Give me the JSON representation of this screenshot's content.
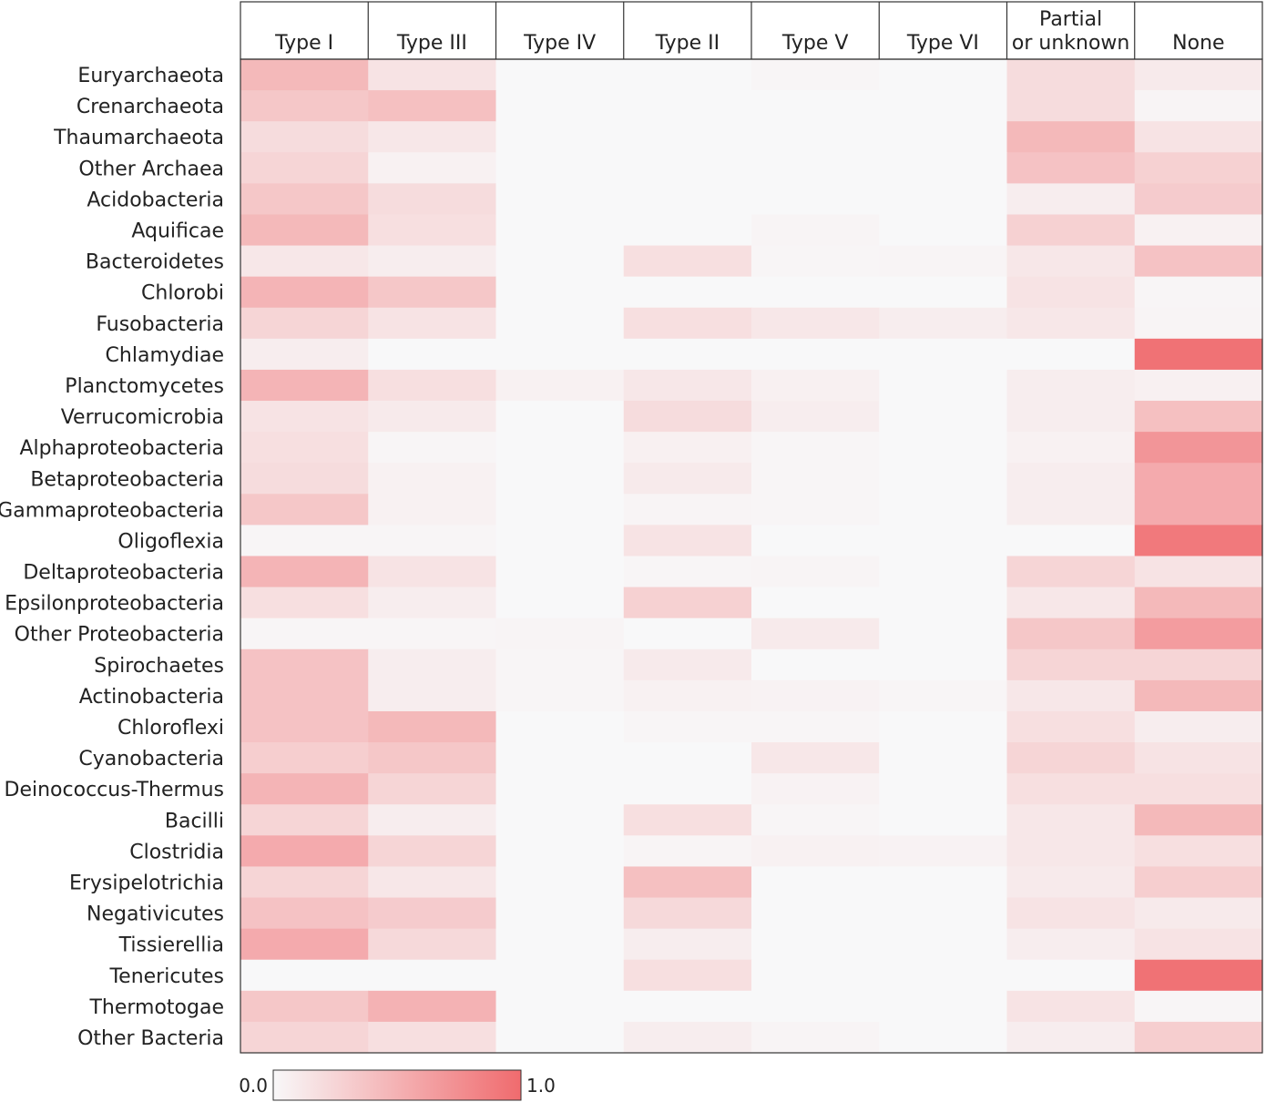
{
  "chart_data": {
    "type": "heatmap",
    "columns": [
      "Type I",
      "Type III",
      "Type IV",
      "Type II",
      "Type V",
      "Type VI",
      "Partial or unknown",
      "None"
    ],
    "rows": [
      "Euryarchaeota",
      "Crenarchaeota",
      "Thaumarchaeota",
      "Other Archaea",
      "Acidobacteria",
      "Aquificae",
      "Bacteroidetes",
      "Chlorobi",
      "Fusobacteria",
      "Chlamydiae",
      "Planctomycetes",
      "Verrucomicrobia",
      "Alphaproteobacteria",
      "Betaproteobacteria",
      "Gammaproteobacteria",
      "Oligoflexia",
      "Deltaproteobacteria",
      "Epsilonproteobacteria",
      "Other Proteobacteria",
      "Spirochaetes",
      "Actinobacteria",
      "Chloroflexi",
      "Cyanobacteria",
      "Deinococcus-Thermus",
      "Bacilli",
      "Clostridia",
      "Erysipelotrichia",
      "Negativicutes",
      "Tissierellia",
      "Tenericutes",
      "Thermotogae",
      "Other Bacteria"
    ],
    "values": [
      [
        0.45,
        0.15,
        0.0,
        0.0,
        0.02,
        0.0,
        0.2,
        0.1
      ],
      [
        0.35,
        0.4,
        0.0,
        0.0,
        0.0,
        0.0,
        0.2,
        0.03
      ],
      [
        0.2,
        0.12,
        0.0,
        0.0,
        0.0,
        0.0,
        0.45,
        0.15
      ],
      [
        0.25,
        0.05,
        0.0,
        0.0,
        0.0,
        0.0,
        0.38,
        0.28
      ],
      [
        0.35,
        0.2,
        0.0,
        0.0,
        0.0,
        0.0,
        0.08,
        0.32
      ],
      [
        0.45,
        0.18,
        0.0,
        0.0,
        0.03,
        0.0,
        0.28,
        0.05
      ],
      [
        0.12,
        0.08,
        0.0,
        0.18,
        0.02,
        0.03,
        0.12,
        0.38
      ],
      [
        0.48,
        0.35,
        0.0,
        0.0,
        0.0,
        0.0,
        0.15,
        0.02
      ],
      [
        0.25,
        0.15,
        0.0,
        0.18,
        0.12,
        0.08,
        0.12,
        0.03
      ],
      [
        0.08,
        0.0,
        0.0,
        0.0,
        0.0,
        0.0,
        0.0,
        0.95
      ],
      [
        0.48,
        0.18,
        0.05,
        0.12,
        0.06,
        0.0,
        0.08,
        0.06
      ],
      [
        0.15,
        0.1,
        0.0,
        0.2,
        0.08,
        0.0,
        0.08,
        0.4
      ],
      [
        0.18,
        0.02,
        0.0,
        0.06,
        0.02,
        0.0,
        0.05,
        0.7
      ],
      [
        0.2,
        0.05,
        0.0,
        0.1,
        0.02,
        0.0,
        0.08,
        0.55
      ],
      [
        0.35,
        0.05,
        0.0,
        0.03,
        0.02,
        0.0,
        0.08,
        0.55
      ],
      [
        0.02,
        0.02,
        0.0,
        0.15,
        0.0,
        0.0,
        0.0,
        0.9
      ],
      [
        0.48,
        0.15,
        0.0,
        0.02,
        0.03,
        0.0,
        0.25,
        0.15
      ],
      [
        0.18,
        0.08,
        0.0,
        0.28,
        0.0,
        0.0,
        0.12,
        0.45
      ],
      [
        0.02,
        0.02,
        0.03,
        0.0,
        0.1,
        0.0,
        0.35,
        0.65
      ],
      [
        0.38,
        0.08,
        0.02,
        0.1,
        0.0,
        0.0,
        0.25,
        0.25
      ],
      [
        0.38,
        0.08,
        0.02,
        0.05,
        0.04,
        0.02,
        0.12,
        0.45
      ],
      [
        0.38,
        0.45,
        0.0,
        0.02,
        0.02,
        0.0,
        0.18,
        0.08
      ],
      [
        0.3,
        0.35,
        0.0,
        0.0,
        0.12,
        0.0,
        0.25,
        0.15
      ],
      [
        0.48,
        0.25,
        0.0,
        0.0,
        0.04,
        0.0,
        0.18,
        0.18
      ],
      [
        0.25,
        0.08,
        0.0,
        0.18,
        0.02,
        0.0,
        0.12,
        0.45
      ],
      [
        0.55,
        0.25,
        0.0,
        0.03,
        0.05,
        0.04,
        0.12,
        0.18
      ],
      [
        0.25,
        0.12,
        0.0,
        0.4,
        0.0,
        0.0,
        0.1,
        0.3
      ],
      [
        0.38,
        0.32,
        0.0,
        0.22,
        0.0,
        0.0,
        0.15,
        0.1
      ],
      [
        0.55,
        0.22,
        0.0,
        0.08,
        0.0,
        0.0,
        0.08,
        0.15
      ],
      [
        0.0,
        0.0,
        0.0,
        0.18,
        0.0,
        0.0,
        0.0,
        0.95
      ],
      [
        0.35,
        0.5,
        0.0,
        0.0,
        0.0,
        0.0,
        0.15,
        0.02
      ],
      [
        0.25,
        0.18,
        0.0,
        0.08,
        0.03,
        0.0,
        0.08,
        0.3
      ]
    ],
    "colorscale": {
      "min": 0.0,
      "max": 1.0,
      "min_color": "#f8f8f9",
      "max_color": "#f06b6e",
      "min_label": "0.0",
      "max_label": "1.0"
    },
    "grid": false
  }
}
